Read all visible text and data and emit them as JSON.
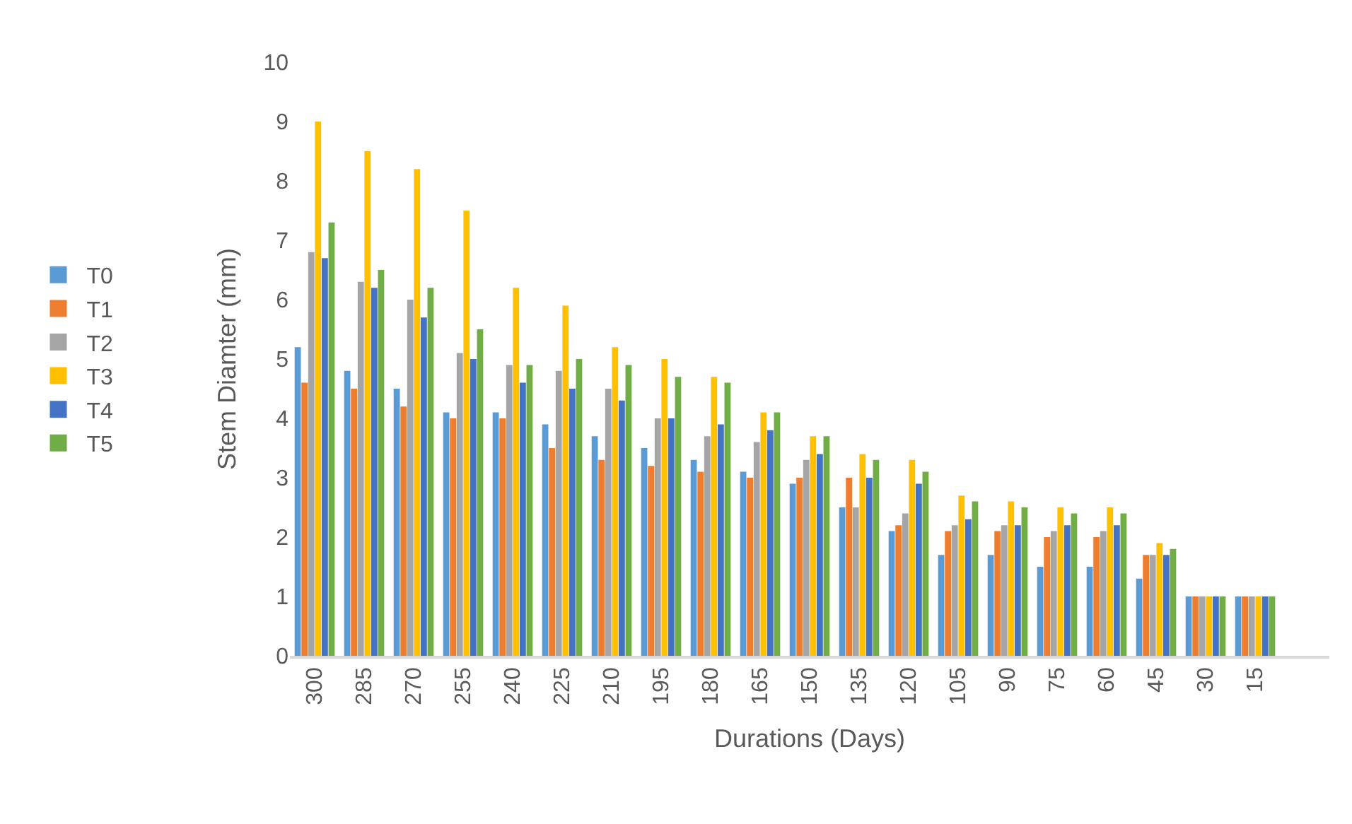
{
  "chart_data": {
    "type": "bar",
    "xlabel": "Durations (Days)",
    "ylabel": "Stem Diamter (mm)",
    "categories": [
      "300",
      "285",
      "270",
      "255",
      "240",
      "225",
      "210",
      "195",
      "180",
      "165",
      "150",
      "135",
      "120",
      "105",
      "90",
      "75",
      "60",
      "45",
      "30",
      "15"
    ],
    "series": [
      {
        "name": "T0",
        "color": "#5b9bd5",
        "values": [
          5.2,
          4.8,
          4.5,
          4.1,
          4.1,
          3.9,
          3.7,
          3.5,
          3.3,
          3.1,
          2.9,
          2.5,
          2.1,
          1.7,
          1.7,
          1.5,
          1.5,
          1.3,
          1,
          1
        ]
      },
      {
        "name": "T1",
        "color": "#ed7d31",
        "values": [
          4.6,
          4.5,
          4.2,
          4.0,
          4.0,
          3.5,
          3.3,
          3.2,
          3.1,
          3.0,
          3.0,
          3.0,
          2.2,
          2.1,
          2.1,
          2.0,
          2.0,
          1.7,
          1,
          1
        ]
      },
      {
        "name": "T2",
        "color": "#a5a5a5",
        "values": [
          6.8,
          6.3,
          6.0,
          5.1,
          4.9,
          4.8,
          4.5,
          4.0,
          3.7,
          3.6,
          3.3,
          2.5,
          2.4,
          2.2,
          2.2,
          2.1,
          2.1,
          1.7,
          1,
          1
        ]
      },
      {
        "name": "T3",
        "color": "#ffc000",
        "values": [
          9.0,
          8.5,
          8.2,
          7.5,
          6.2,
          5.9,
          5.2,
          5.0,
          4.7,
          4.1,
          3.7,
          3.4,
          3.3,
          2.7,
          2.6,
          2.5,
          2.5,
          1.9,
          1,
          1
        ]
      },
      {
        "name": "T4",
        "color": "#4472c4",
        "values": [
          6.7,
          6.2,
          5.7,
          5.0,
          4.6,
          4.5,
          4.3,
          4.0,
          3.9,
          3.8,
          3.4,
          3.0,
          2.9,
          2.3,
          2.2,
          2.2,
          2.2,
          1.7,
          1,
          1
        ]
      },
      {
        "name": "T5",
        "color": "#70ad47",
        "values": [
          7.3,
          6.5,
          6.2,
          5.5,
          4.9,
          5.0,
          4.9,
          4.7,
          4.6,
          4.1,
          3.7,
          3.3,
          3.1,
          2.6,
          2.5,
          2.4,
          2.4,
          1.8,
          1,
          1
        ]
      }
    ],
    "ylim": [
      0,
      10
    ],
    "yticks": [
      0,
      1,
      2,
      3,
      4,
      5,
      6,
      7,
      8,
      9,
      10
    ],
    "grid": false,
    "legend": "left"
  }
}
